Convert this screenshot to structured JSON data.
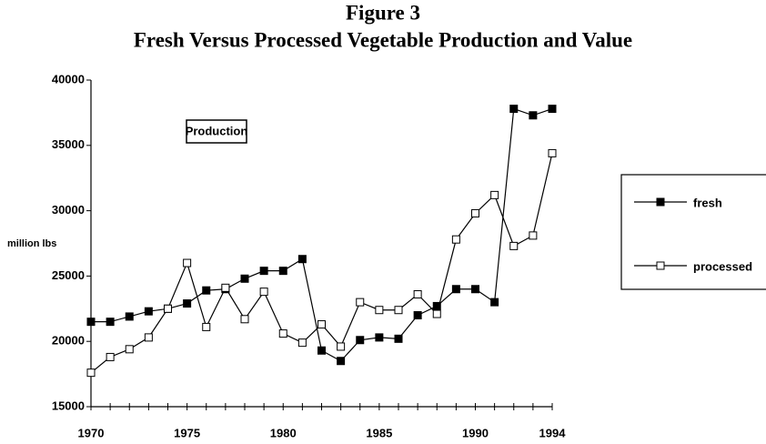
{
  "chart_data": {
    "type": "line",
    "title": "Figure 3",
    "subtitle": "Fresh Versus Processed Vegetable Production and Value",
    "annotation": "Production",
    "y_label": "million lbs",
    "x": [
      1970,
      1971,
      1972,
      1973,
      1974,
      1975,
      1976,
      1977,
      1978,
      1979,
      1980,
      1981,
      1982,
      1983,
      1984,
      1985,
      1986,
      1987,
      1988,
      1989,
      1990,
      1991,
      1992,
      1993,
      1994
    ],
    "series": [
      {
        "name": "fresh",
        "color": "#000000",
        "marker": "filled",
        "values": [
          21500,
          21500,
          21900,
          22300,
          22500,
          22900,
          23900,
          24000,
          24800,
          25400,
          25400,
          26300,
          19300,
          18500,
          20100,
          20300,
          20200,
          22000,
          22700,
          24000,
          24000,
          23000,
          37800,
          37300,
          37800
        ]
      },
      {
        "name": "processed",
        "color": "#000000",
        "marker": "open",
        "values": [
          17600,
          18800,
          19400,
          20300,
          22500,
          26000,
          21100,
          24100,
          21700,
          23800,
          20600,
          19900,
          21300,
          19600,
          23000,
          22400,
          22400,
          23600,
          22100,
          27800,
          29800,
          31200,
          27300,
          28100,
          34400
        ]
      }
    ],
    "xlim": [
      1970,
      1994
    ],
    "xticks": [
      1970,
      1975,
      1980,
      1985,
      1990,
      1994
    ],
    "ylim": [
      15000,
      40000
    ],
    "yticks": [
      15000,
      20000,
      25000,
      30000,
      35000,
      40000
    ],
    "grid": false,
    "legend": "right"
  }
}
